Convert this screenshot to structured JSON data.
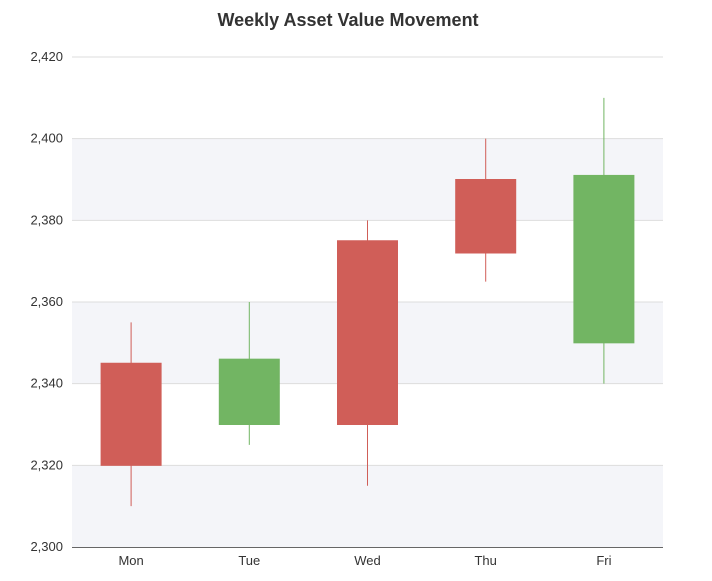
{
  "chart_data": {
    "type": "candlestick",
    "title": "Weekly Asset Value Movement",
    "xlabel": "",
    "ylabel": "",
    "categories": [
      "Mon",
      "Tue",
      "Wed",
      "Thu",
      "Fri"
    ],
    "series": [
      {
        "values": [
          {
            "open": 2345,
            "close": 2320,
            "high": 2355,
            "low": 2310
          },
          {
            "open": 2330,
            "close": 2346,
            "high": 2360,
            "low": 2325
          },
          {
            "open": 2375,
            "close": 2330,
            "high": 2380,
            "low": 2315
          },
          {
            "open": 2390,
            "close": 2372,
            "high": 2400,
            "low": 2365
          },
          {
            "open": 2350,
            "close": 2391,
            "high": 2410,
            "low": 2340
          }
        ]
      }
    ],
    "ylim": [
      2300,
      2420
    ],
    "yticks": [
      2300,
      2320,
      2340,
      2360,
      2380,
      2400,
      2420
    ],
    "ytick_labels": [
      "2,300",
      "2,320",
      "2,340",
      "2,360",
      "2,380",
      "2,400",
      "2,420"
    ],
    "grid": true,
    "alternating_bands": true,
    "colors": {
      "up": "#72b563",
      "down": "#d05e58",
      "band": "#f4f5f9",
      "grid": "#dddddd",
      "axis": "#666666"
    }
  }
}
